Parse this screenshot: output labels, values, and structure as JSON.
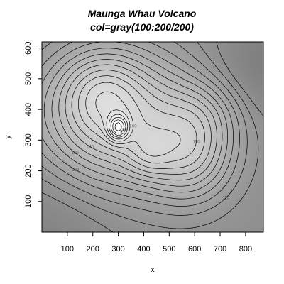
{
  "chart_data": {
    "type": "heatmap",
    "title": "Maunga Whau Volcano",
    "subtitle": "col=gray(100:200/200)",
    "xlabel": "x",
    "ylabel": "y",
    "xlim": [
      0,
      870
    ],
    "ylim": [
      0,
      620
    ],
    "x_ticks": [
      100,
      200,
      300,
      400,
      500,
      600,
      700,
      800
    ],
    "y_ticks": [
      100,
      200,
      300,
      400,
      500,
      600
    ],
    "contour_labels": [
      "110",
      "120",
      "130",
      "140",
      "150",
      "160",
      "170",
      "180",
      "190"
    ],
    "contour_levels": [
      100,
      105,
      110,
      115,
      120,
      125,
      130,
      135,
      140,
      145,
      150,
      155,
      160,
      165,
      170,
      175,
      180,
      185,
      190
    ],
    "peak": {
      "x": 300,
      "y": 340,
      "value": 195
    },
    "colors": {
      "low": "#808080",
      "high": "#ffffff",
      "lines": "#000000"
    }
  }
}
